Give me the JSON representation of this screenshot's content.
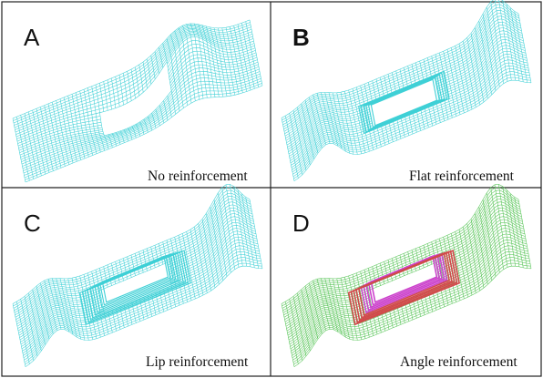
{
  "figure": {
    "panels": [
      {
        "letter": "A",
        "letter_bold": false,
        "caption": "No reinforcement",
        "mesh_colors": [
          "#3fd0d6"
        ],
        "shape": "no"
      },
      {
        "letter": "B",
        "letter_bold": true,
        "caption": "Flat reinforcement",
        "mesh_colors": [
          "#3fd0d6"
        ],
        "shape": "flat"
      },
      {
        "letter": "C",
        "letter_bold": false,
        "caption": "Lip reinforcement",
        "mesh_colors": [
          "#3fd0d6"
        ],
        "shape": "lip"
      },
      {
        "letter": "D",
        "letter_bold": false,
        "caption": "Angle reinforcement",
        "mesh_colors": [
          "#55c455",
          "#d04a4a",
          "#cc44cc"
        ],
        "shape": "angle"
      }
    ]
  }
}
